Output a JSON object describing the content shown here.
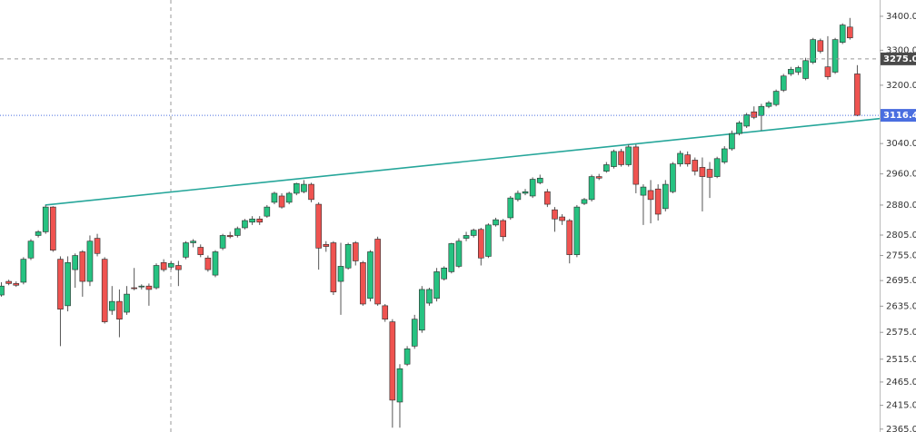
{
  "chart_data": {
    "type": "candlestick",
    "log_scale": true,
    "up_color": "#26c281",
    "down_color": "#ef5350",
    "wick_color": "#555555",
    "ylim": [
      2359,
      3449
    ],
    "yticks": [
      {
        "value": 3400,
        "label": "3400.00"
      },
      {
        "value": 3300,
        "label": "3300.00"
      },
      {
        "value": 3200,
        "label": "3200.00"
      },
      {
        "value": 3040,
        "label": "3040.00"
      },
      {
        "value": 2960,
        "label": "2960.00"
      },
      {
        "value": 2880,
        "label": "2880.00"
      },
      {
        "value": 2805,
        "label": "2805.00"
      },
      {
        "value": 2755,
        "label": "2755.00"
      },
      {
        "value": 2695,
        "label": "2695.00"
      },
      {
        "value": 2635,
        "label": "2635.00"
      },
      {
        "value": 2575,
        "label": "2575.00"
      },
      {
        "value": 2515,
        "label": "2515.00"
      },
      {
        "value": 2465,
        "label": "2465.00"
      },
      {
        "value": 2415,
        "label": "2415.00"
      },
      {
        "value": 2365,
        "label": "2365.00"
      }
    ],
    "crosshair_price": {
      "value": 3275.02,
      "label": "3275.02",
      "color": "#4a4a4a"
    },
    "last_price": {
      "value": 3116.4,
      "label": "3116.40",
      "color": "#4a6ee0"
    },
    "trendline": {
      "color": "#26a69a",
      "x": [
        6,
        115
      ],
      "values": [
        2880,
        3099
      ]
    },
    "ohlc": [
      [
        2661,
        2691,
        2657,
        2682
      ],
      [
        2693,
        2697,
        2684,
        2688
      ],
      [
        2688,
        2693,
        2680,
        2684
      ],
      [
        2691,
        2751,
        2686,
        2746
      ],
      [
        2749,
        2795,
        2744,
        2790
      ],
      [
        2804,
        2817,
        2799,
        2813
      ],
      [
        2813,
        2880,
        2808,
        2875
      ],
      [
        2875,
        2877,
        2764,
        2768
      ],
      [
        2746,
        2753,
        2544,
        2628
      ],
      [
        2636,
        2753,
        2623,
        2738
      ],
      [
        2721,
        2760,
        2678,
        2755
      ],
      [
        2764,
        2768,
        2657,
        2693
      ],
      [
        2693,
        2804,
        2682,
        2790
      ],
      [
        2797,
        2808,
        2753,
        2760
      ],
      [
        2746,
        2751,
        2595,
        2599
      ],
      [
        2625,
        2682,
        2615,
        2646
      ],
      [
        2646,
        2674,
        2564,
        2605
      ],
      [
        2621,
        2682,
        2615,
        2663
      ],
      [
        2678,
        2725,
        2672,
        2676
      ],
      [
        2680,
        2686,
        2674,
        2682
      ],
      [
        2682,
        2688,
        2636,
        2674
      ],
      [
        2678,
        2736,
        2674,
        2731
      ],
      [
        2738,
        2746,
        2716,
        2721
      ],
      [
        2727,
        2742,
        2721,
        2736
      ],
      [
        2731,
        2742,
        2682,
        2721
      ],
      [
        2751,
        2790,
        2746,
        2786
      ],
      [
        2786,
        2795,
        2775,
        2790
      ],
      [
        2775,
        2782,
        2751,
        2757
      ],
      [
        2749,
        2755,
        2716,
        2721
      ],
      [
        2708,
        2768,
        2703,
        2764
      ],
      [
        2773,
        2808,
        2768,
        2804
      ],
      [
        2804,
        2813,
        2797,
        2801
      ],
      [
        2804,
        2826,
        2799,
        2821
      ],
      [
        2823,
        2845,
        2819,
        2841
      ],
      [
        2837,
        2852,
        2830,
        2845
      ],
      [
        2845,
        2852,
        2830,
        2837
      ],
      [
        2852,
        2880,
        2848,
        2875
      ],
      [
        2887,
        2914,
        2882,
        2910
      ],
      [
        2903,
        2910,
        2871,
        2875
      ],
      [
        2887,
        2914,
        2882,
        2910
      ],
      [
        2910,
        2937,
        2905,
        2935
      ],
      [
        2914,
        2944,
        2910,
        2933
      ],
      [
        2933,
        2937,
        2887,
        2894
      ],
      [
        2882,
        2887,
        2721,
        2773
      ],
      [
        2782,
        2790,
        2764,
        2777
      ],
      [
        2786,
        2790,
        2661,
        2668
      ],
      [
        2693,
        2786,
        2615,
        2729
      ],
      [
        2725,
        2786,
        2721,
        2782
      ],
      [
        2786,
        2790,
        2731,
        2742
      ],
      [
        2738,
        2742,
        2636,
        2640
      ],
      [
        2653,
        2768,
        2646,
        2764
      ],
      [
        2795,
        2801,
        2636,
        2640
      ],
      [
        2636,
        2640,
        2599,
        2605
      ],
      [
        2599,
        2605,
        2368,
        2426
      ],
      [
        2422,
        2504,
        2368,
        2494
      ],
      [
        2504,
        2544,
        2500,
        2538
      ],
      [
        2544,
        2615,
        2538,
        2605
      ],
      [
        2580,
        2682,
        2574,
        2674
      ],
      [
        2642,
        2678,
        2636,
        2674
      ],
      [
        2653,
        2725,
        2646,
        2716
      ],
      [
        2699,
        2729,
        2695,
        2725
      ],
      [
        2716,
        2786,
        2712,
        2784
      ],
      [
        2729,
        2797,
        2725,
        2790
      ],
      [
        2797,
        2813,
        2790,
        2804
      ],
      [
        2804,
        2821,
        2799,
        2817
      ],
      [
        2819,
        2823,
        2731,
        2749
      ],
      [
        2753,
        2834,
        2749,
        2830
      ],
      [
        2830,
        2848,
        2826,
        2843
      ],
      [
        2841,
        2845,
        2790,
        2801
      ],
      [
        2848,
        2903,
        2843,
        2898
      ],
      [
        2894,
        2917,
        2889,
        2910
      ],
      [
        2910,
        2921,
        2905,
        2914
      ],
      [
        2903,
        2951,
        2898,
        2946
      ],
      [
        2937,
        2958,
        2933,
        2949
      ],
      [
        2914,
        2921,
        2875,
        2882
      ],
      [
        2868,
        2875,
        2813,
        2845
      ],
      [
        2850,
        2857,
        2830,
        2841
      ],
      [
        2841,
        2845,
        2736,
        2757
      ],
      [
        2757,
        2880,
        2751,
        2875
      ],
      [
        2884,
        2898,
        2880,
        2894
      ],
      [
        2894,
        2958,
        2889,
        2953
      ],
      [
        2953,
        2960,
        2944,
        2949
      ],
      [
        2967,
        2991,
        2963,
        2984
      ],
      [
        2979,
        3024,
        2974,
        3019
      ],
      [
        3019,
        3026,
        2979,
        2984
      ],
      [
        2984,
        3038,
        2979,
        3031
      ],
      [
        3031,
        3038,
        2910,
        2933
      ],
      [
        2905,
        2933,
        2830,
        2926
      ],
      [
        2917,
        2944,
        2834,
        2894
      ],
      [
        2921,
        2933,
        2841,
        2857
      ],
      [
        2871,
        2944,
        2864,
        2933
      ],
      [
        2914,
        2991,
        2910,
        2986
      ],
      [
        2986,
        3021,
        2979,
        3014
      ],
      [
        3010,
        3019,
        2979,
        2986
      ],
      [
        2996,
        3003,
        2956,
        2967
      ],
      [
        2977,
        3003,
        2864,
        2953
      ],
      [
        2972,
        2991,
        2898,
        2951
      ],
      [
        2953,
        3005,
        2949,
        3000
      ],
      [
        2991,
        3033,
        2986,
        3026
      ],
      [
        3026,
        3075,
        3021,
        3067
      ],
      [
        3067,
        3101,
        3062,
        3096
      ],
      [
        3087,
        3123,
        3082,
        3118
      ],
      [
        3126,
        3141,
        3106,
        3111
      ],
      [
        3116,
        3148,
        3075,
        3141
      ],
      [
        3141,
        3156,
        3136,
        3151
      ],
      [
        3146,
        3188,
        3141,
        3183
      ],
      [
        3186,
        3232,
        3181,
        3226
      ],
      [
        3232,
        3252,
        3226,
        3245
      ],
      [
        3237,
        3255,
        3229,
        3250
      ],
      [
        3219,
        3278,
        3214,
        3270
      ],
      [
        3265,
        3336,
        3260,
        3331
      ],
      [
        3328,
        3334,
        3291,
        3297
      ],
      [
        3252,
        3341,
        3216,
        3224
      ],
      [
        3237,
        3336,
        3232,
        3331
      ],
      [
        3323,
        3379,
        3318,
        3374
      ],
      [
        3368,
        3395,
        3331,
        3336
      ],
      [
        3232,
        3257,
        3114,
        3116.4
      ]
    ]
  }
}
